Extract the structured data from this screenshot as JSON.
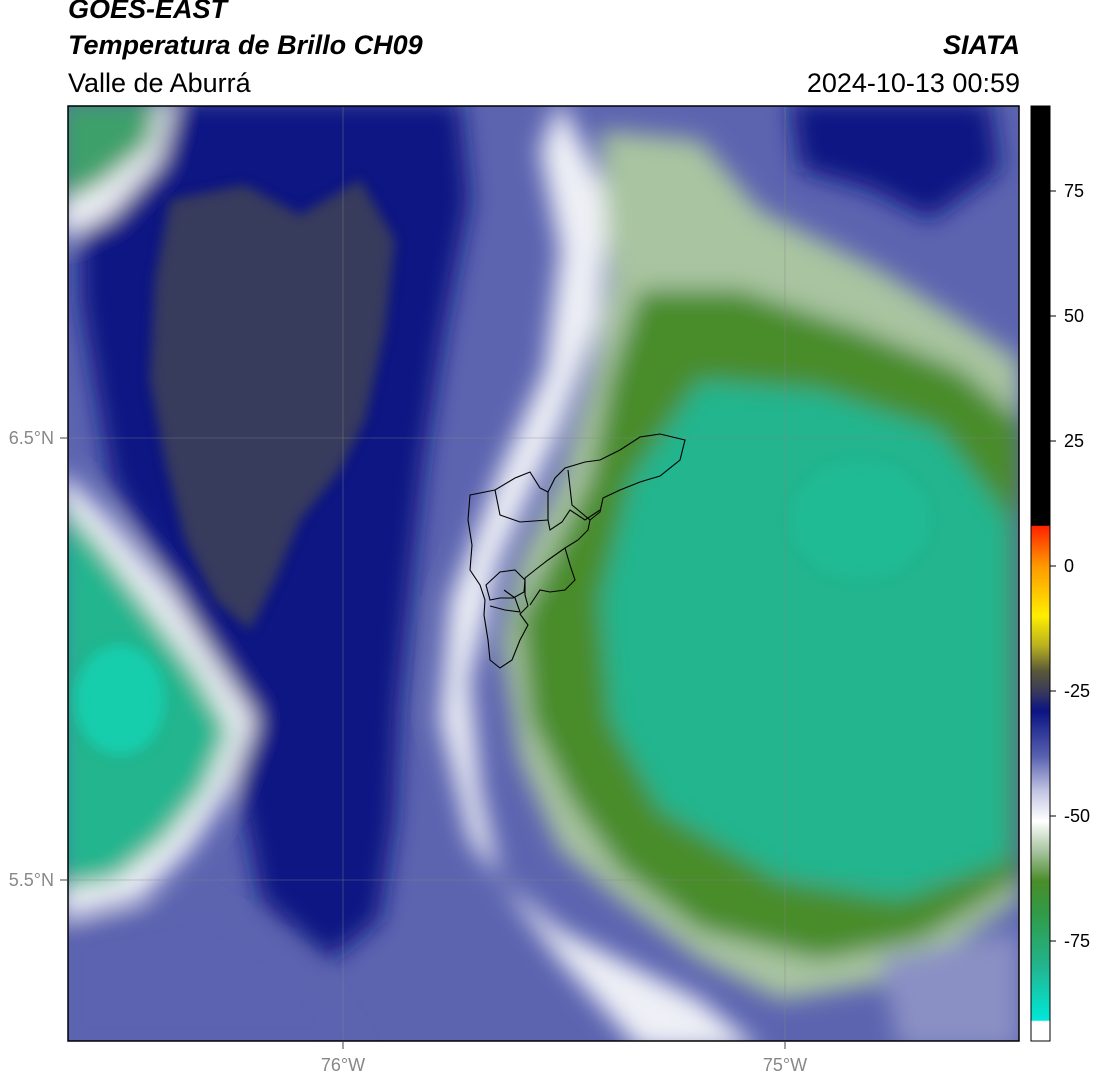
{
  "header": {
    "satellite": "GOES-EAST",
    "product": "Temperatura de Brillo CH09",
    "region": "Valle de Aburrá",
    "agency": "SIATA",
    "datetime": "2024-10-13 00:59"
  },
  "map": {
    "lat_ticks": [
      "6.5°N",
      "5.5°N"
    ],
    "lon_ticks": [
      "76°W",
      "75°W"
    ]
  },
  "colorbar": {
    "ticks": [
      "75",
      "50",
      "25",
      "0",
      "-25",
      "-50",
      "-75"
    ],
    "tick_values": [
      75,
      50,
      25,
      0,
      -25,
      -50,
      -75
    ],
    "range": [
      -95,
      92
    ],
    "stops": [
      {
        "v": -95,
        "c": "#ffffff"
      },
      {
        "v": -91,
        "c": "#ffffff"
      },
      {
        "v": -90.9,
        "c": "#00e8d8"
      },
      {
        "v": -80,
        "c": "#22b58e"
      },
      {
        "v": -70,
        "c": "#2f9c4a"
      },
      {
        "v": -63,
        "c": "#4a8c2a"
      },
      {
        "v": -57,
        "c": "#a8c4a0"
      },
      {
        "v": -51,
        "c": "#ffffff"
      },
      {
        "v": -45,
        "c": "#c2c4e2"
      },
      {
        "v": -38,
        "c": "#5860b0"
      },
      {
        "v": -29,
        "c": "#0b1483"
      },
      {
        "v": -25,
        "c": "#3a3a5a"
      },
      {
        "v": -21,
        "c": "#5a5838"
      },
      {
        "v": -16,
        "c": "#b8b020"
      },
      {
        "v": -10,
        "c": "#ffee00"
      },
      {
        "v": 0,
        "c": "#ff9900"
      },
      {
        "v": 8,
        "c": "#ff2200"
      },
      {
        "v": 8.1,
        "c": "#000000"
      },
      {
        "v": 92,
        "c": "#000000"
      }
    ]
  },
  "colors": {
    "cold_cloud": "#0b1483",
    "dark_core": "#3e4058",
    "cloud_edge": "#5c64b0",
    "clear_green": "#4a8c2a",
    "warm_teal": "#22b58e"
  }
}
